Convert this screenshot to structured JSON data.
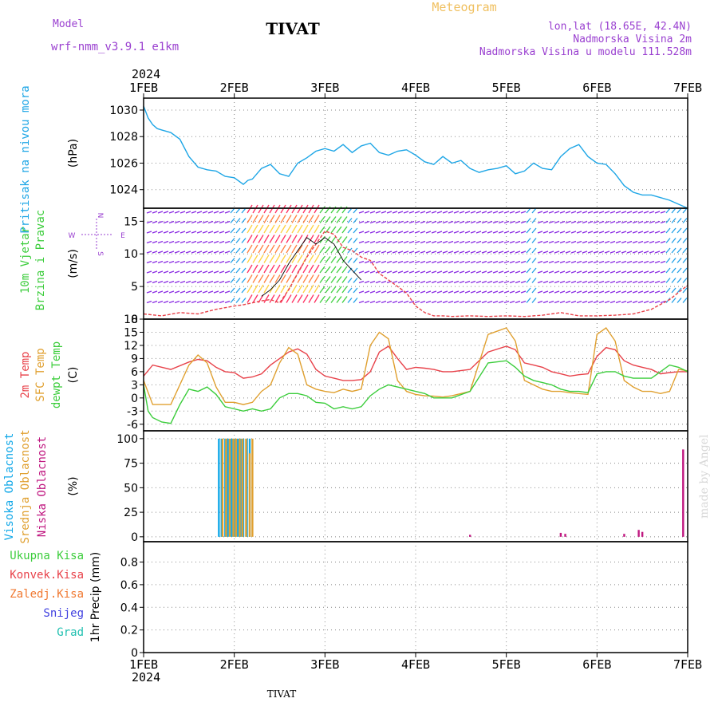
{
  "header": {
    "model_label": "Model",
    "model_name": "wrf-nmm_v3.9.1  e1km",
    "station": "TIVAT",
    "meteogram_label": "Meteogram",
    "lonlat": "lon,lat (18.65E, 42.4N)",
    "elevation": "Nadmorska Visina 2m",
    "model_elevation": "Nadmorska Visina u modelu 111.528m",
    "year_top": "2024",
    "year_bottom": "2024",
    "footer_station": "TIVAT",
    "credit": "made by Angel"
  },
  "colors": {
    "pressure": "#1ea6e6",
    "temp2m": "#e8424a",
    "sfc": "#e0a030",
    "dewpt": "#3ccd3c",
    "high_cloud": "#12a8e8",
    "mid_cloud": "#e0a030",
    "low_cloud": "#c01880",
    "total_precip": "#3ccd3c",
    "conv_precip": "#e8424a",
    "frozen_precip": "#f07830",
    "snow": "#4040e0",
    "hail": "#20c0b0",
    "model_label": "#9a40d0",
    "grid": "#888888"
  },
  "chart_data": {
    "type": "line",
    "x_ticks": [
      "1FEB",
      "2FEB",
      "3FEB",
      "4FEB",
      "5FEB",
      "6FEB",
      "7FEB"
    ],
    "x_range_days": [
      0,
      6
    ],
    "panels": [
      {
        "name": "pressure",
        "ylabel": "(hPa)",
        "title_lines": [
          "Pritisak na nivou mora"
        ],
        "yticks": [
          1024,
          1026,
          1028,
          1030
        ],
        "ylim": [
          1022.6,
          1030.9
        ],
        "series": [
          {
            "color_key": "pressure",
            "x": [
              0,
              0.05,
              0.1,
              0.15,
              0.2,
              0.3,
              0.4,
              0.5,
              0.6,
              0.7,
              0.8,
              0.9,
              1.0,
              1.1,
              1.15,
              1.2,
              1.3,
              1.4,
              1.5,
              1.6,
              1.7,
              1.8,
              1.9,
              2.0,
              2.1,
              2.2,
              2.3,
              2.4,
              2.5,
              2.6,
              2.7,
              2.8,
              2.9,
              3.0,
              3.1,
              3.2,
              3.3,
              3.4,
              3.5,
              3.6,
              3.7,
              3.8,
              3.9,
              4.0,
              4.1,
              4.2,
              4.3,
              4.4,
              4.5,
              4.6,
              4.7,
              4.8,
              4.9,
              5.0,
              5.1,
              5.2,
              5.3,
              5.4,
              5.5,
              5.6,
              5.7,
              5.8,
              5.9,
              6.0
            ],
            "y": [
              1030.3,
              1029.4,
              1028.9,
              1028.6,
              1028.5,
              1028.3,
              1027.8,
              1026.5,
              1025.7,
              1025.5,
              1025.4,
              1025.0,
              1024.9,
              1024.4,
              1024.7,
              1024.8,
              1025.6,
              1025.9,
              1025.2,
              1025.0,
              1026.0,
              1026.4,
              1026.9,
              1027.1,
              1026.9,
              1027.4,
              1026.8,
              1027.3,
              1027.5,
              1026.8,
              1026.6,
              1026.9,
              1027.0,
              1026.6,
              1026.1,
              1025.9,
              1026.5,
              1026.0,
              1026.2,
              1025.6,
              1025.3,
              1025.5,
              1025.6,
              1025.8,
              1025.2,
              1025.4,
              1026.0,
              1025.6,
              1025.5,
              1026.5,
              1027.1,
              1027.4,
              1026.5,
              1026.0,
              1025.9,
              1025.2,
              1024.3,
              1023.8,
              1023.6,
              1023.6,
              1023.4,
              1023.2,
              1022.9,
              1022.6
            ]
          }
        ]
      },
      {
        "name": "wind",
        "ylabel": "(m/s)",
        "title_lines": [
          "10m Vjetar",
          "Brzina i Pravac"
        ],
        "compass": {
          "n": "N",
          "w": "W",
          "e": "E",
          "s": "S"
        },
        "yticks": [
          0,
          5,
          10,
          15
        ],
        "ylim": [
          0,
          17
        ],
        "series": [
          {
            "color_key": "conv_precip",
            "dashed": true,
            "x": [
              0,
              0.2,
              0.4,
              0.6,
              0.8,
              1.0,
              1.1,
              1.2,
              1.3,
              1.4,
              1.5,
              1.6,
              1.7,
              1.8,
              1.9,
              2.0,
              2.1,
              2.2,
              2.3,
              2.4,
              2.5,
              2.6,
              2.7,
              2.8,
              2.9,
              3.0,
              3.1,
              3.2,
              3.3,
              3.4,
              3.6,
              3.8,
              4.0,
              4.2,
              4.4,
              4.6,
              4.8,
              5.0,
              5.2,
              5.4,
              5.6,
              5.8,
              6.0
            ],
            "y": [
              0.8,
              0.5,
              1.0,
              0.8,
              1.5,
              2.0,
              2.2,
              2.5,
              2.8,
              3.0,
              2.5,
              4.5,
              7.0,
              9.5,
              11.5,
              13.5,
              13.0,
              11.0,
              10.5,
              9.5,
              9.0,
              7.0,
              6.0,
              5.0,
              4.0,
              2.0,
              1.0,
              0.5,
              0.5,
              0.4,
              0.5,
              0.4,
              0.5,
              0.4,
              0.6,
              1.0,
              0.5,
              0.5,
              0.6,
              0.8,
              1.5,
              3.0,
              5.2
            ]
          },
          {
            "color_key": "black_line",
            "x": [
              1.3,
              1.4,
              1.5,
              1.6,
              1.7,
              1.8,
              1.9,
              2.0,
              2.1,
              2.2,
              2.3,
              2.4
            ],
            "y": [
              3.5,
              4.5,
              6.0,
              8.5,
              10.5,
              12.5,
              11.5,
              12.5,
              11.5,
              9.0,
              7.5,
              6.0
            ]
          }
        ]
      },
      {
        "name": "temperature",
        "ylabel": "(C)",
        "title_lines": [
          "2m Temp",
          "SFC Temp",
          "dewpt Temp"
        ],
        "yticks": [
          -6,
          -3,
          0,
          3,
          6,
          9,
          12,
          15,
          18
        ],
        "ylim": [
          -7.5,
          18
        ],
        "series": [
          {
            "name": "2m Temp",
            "color_key": "temp2m",
            "x": [
              0,
              0.1,
              0.3,
              0.5,
              0.6,
              0.7,
              0.8,
              0.9,
              1.0,
              1.1,
              1.2,
              1.3,
              1.4,
              1.5,
              1.6,
              1.7,
              1.8,
              1.9,
              2.0,
              2.1,
              2.2,
              2.3,
              2.4,
              2.5,
              2.6,
              2.7,
              2.8,
              2.9,
              3.0,
              3.1,
              3.2,
              3.3,
              3.4,
              3.6,
              3.8,
              4.0,
              4.1,
              4.2,
              4.3,
              4.4,
              4.5,
              4.6,
              4.7,
              4.8,
              4.9,
              5.0,
              5.1,
              5.2,
              5.3,
              5.4,
              5.5,
              5.6,
              5.7,
              5.8,
              5.9,
              6.0
            ],
            "y": [
              5,
              7.5,
              6.5,
              8.2,
              8.8,
              8.5,
              7.0,
              6.0,
              5.8,
              4.5,
              4.8,
              5.5,
              7.5,
              9.0,
              10.5,
              11.2,
              10.0,
              6.5,
              5.0,
              4.5,
              4.0,
              4.0,
              4.2,
              6.0,
              10.5,
              11.8,
              9.0,
              6.5,
              7.0,
              6.8,
              6.5,
              6.0,
              6.0,
              6.5,
              10.5,
              11.8,
              11.0,
              8.0,
              7.5,
              7.0,
              6.0,
              5.5,
              5.0,
              5.3,
              5.5,
              9.5,
              11.5,
              11.0,
              8.5,
              7.5,
              7.0,
              6.5,
              5.5,
              5.8,
              6.0,
              6.0
            ]
          },
          {
            "name": "SFC Temp",
            "color_key": "sfc",
            "x": [
              0,
              0.1,
              0.3,
              0.5,
              0.6,
              0.7,
              0.8,
              0.9,
              1.0,
              1.1,
              1.2,
              1.3,
              1.4,
              1.5,
              1.6,
              1.7,
              1.8,
              1.9,
              2.0,
              2.1,
              2.2,
              2.3,
              2.4,
              2.5,
              2.6,
              2.7,
              2.8,
              2.9,
              3.0,
              3.1,
              3.2,
              3.3,
              3.4,
              3.6,
              3.8,
              4.0,
              4.1,
              4.2,
              4.3,
              4.4,
              4.5,
              4.6,
              4.7,
              4.8,
              4.9,
              5.0,
              5.1,
              5.2,
              5.3,
              5.4,
              5.5,
              5.6,
              5.7,
              5.8,
              5.9,
              6.0
            ],
            "y": [
              4,
              -1.5,
              -1.5,
              7.5,
              9.8,
              8.0,
              2.5,
              -1.0,
              -1.0,
              -1.5,
              -1.0,
              1.5,
              3.0,
              8.0,
              11.5,
              10.0,
              3.0,
              2.0,
              1.5,
              1.2,
              2.0,
              1.5,
              2.0,
              12.0,
              15.0,
              13.5,
              4.0,
              1.5,
              0.8,
              0.5,
              0.4,
              0.2,
              0.5,
              1.5,
              14.5,
              16.0,
              13.0,
              4.0,
              3.0,
              2.0,
              1.5,
              1.5,
              1.2,
              1.0,
              0.8,
              14.5,
              16.0,
              13.0,
              4.0,
              2.5,
              1.5,
              1.5,
              1.0,
              1.5,
              6.5,
              6.2
            ]
          },
          {
            "name": "dewpt Temp",
            "color_key": "dewpt",
            "x": [
              0,
              0.05,
              0.1,
              0.2,
              0.3,
              0.4,
              0.5,
              0.6,
              0.7,
              0.8,
              0.9,
              1.0,
              1.1,
              1.2,
              1.3,
              1.4,
              1.5,
              1.6,
              1.7,
              1.8,
              1.9,
              2.0,
              2.1,
              2.2,
              2.3,
              2.4,
              2.5,
              2.6,
              2.7,
              2.8,
              2.9,
              3.0,
              3.1,
              3.2,
              3.3,
              3.4,
              3.6,
              3.8,
              4.0,
              4.1,
              4.2,
              4.3,
              4.4,
              4.5,
              4.6,
              4.7,
              4.8,
              4.9,
              5.0,
              5.1,
              5.2,
              5.3,
              5.4,
              5.5,
              5.6,
              5.7,
              5.8,
              5.9,
              6.0
            ],
            "y": [
              3,
              -3,
              -4.5,
              -5.5,
              -5.8,
              -1.5,
              2.0,
              1.5,
              2.5,
              0.8,
              -2.0,
              -2.5,
              -3.0,
              -2.5,
              -3.0,
              -2.5,
              0.0,
              1.0,
              1.0,
              0.5,
              -1.0,
              -1.2,
              -2.5,
              -2.0,
              -2.5,
              -2.0,
              0.5,
              2.0,
              3.0,
              2.5,
              2.0,
              1.5,
              1.0,
              0.0,
              0.0,
              0.0,
              1.5,
              8.0,
              8.5,
              7.0,
              5.0,
              4.0,
              3.5,
              3.0,
              2.0,
              1.5,
              1.5,
              1.2,
              5.5,
              6.0,
              6.0,
              5.0,
              4.5,
              4.5,
              4.5,
              6.0,
              7.5,
              7.0,
              6.0
            ]
          }
        ]
      },
      {
        "name": "clouds",
        "ylabel": "(%)",
        "title_lines": [
          "Visoka Oblacnost",
          "Srednja Oblacnost",
          "Niska Oblacnost"
        ],
        "yticks": [
          0,
          25,
          50,
          75,
          100
        ],
        "ylim": [
          -5,
          108
        ],
        "bars": [
          {
            "name": "Visoka Oblacnost",
            "color_key": "high_cloud",
            "x": [
              0.83,
              0.86,
              0.9,
              0.93,
              0.97,
              1.0,
              1.04,
              1.07,
              1.1,
              1.14,
              1.17
            ],
            "y": [
              100,
              100,
              100,
              100,
              100,
              100,
              100,
              100,
              100,
              100,
              100
            ]
          },
          {
            "name": "Srednja Oblacnost",
            "color_key": "mid_cloud",
            "x": [
              0.87,
              0.91,
              0.95,
              0.99,
              1.02,
              1.06,
              1.09,
              1.13,
              1.17,
              1.2
            ],
            "y": [
              100,
              100,
              100,
              100,
              100,
              100,
              100,
              100,
              85,
              100
            ]
          },
          {
            "name": "Niska Oblacnost",
            "color_key": "low_cloud",
            "x": [
              3.6,
              4.6,
              4.65,
              5.3,
              5.46,
              5.5,
              5.95
            ],
            "y": [
              2,
              4,
              3,
              3,
              7,
              5,
              89
            ]
          }
        ]
      },
      {
        "name": "precip",
        "ylabel": "1hr Precip (mm)",
        "title_lines": [
          "Ukupna Kisa",
          "Konvek.Kisa",
          "Zaledj.Kisa",
          "Snijeg",
          "Grad"
        ],
        "yticks": [
          0,
          0.2,
          0.4,
          0.6,
          0.8
        ],
        "ylim": [
          0,
          0.98
        ],
        "series": []
      }
    ]
  }
}
